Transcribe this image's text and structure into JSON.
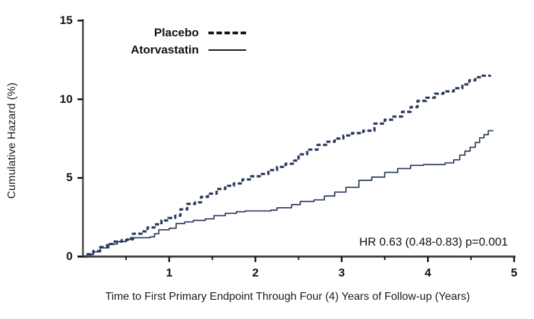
{
  "chart_data": {
    "type": "line",
    "title": "",
    "xlabel": "Time to First Primary Endpoint Through Four (4) Years of Follow-up (Years)",
    "ylabel": "Cumulative Hazard (%)",
    "xlim": [
      0,
      5
    ],
    "ylim": [
      0,
      15
    ],
    "x_ticks": [
      1,
      2,
      3,
      4,
      5
    ],
    "x_minor_ticks": [
      0.5,
      1.5,
      2.5,
      3.5,
      4.5
    ],
    "y_ticks": [
      0,
      5,
      10,
      15
    ],
    "grid": false,
    "legend_position": "top-inside",
    "annotation": "HR 0.63 (0.48-0.83)  p=0.001",
    "curve_color": "#2b3a5e",
    "axis_color": "#3f3f3f",
    "legend_swatch_color": "#111111",
    "series": [
      {
        "name": "Placebo",
        "style": "dashed",
        "points": [
          [
            0,
            0
          ],
          [
            0.05,
            0.15
          ],
          [
            0.12,
            0.35
          ],
          [
            0.2,
            0.6
          ],
          [
            0.28,
            0.8
          ],
          [
            0.35,
            0.95
          ],
          [
            0.45,
            1.05
          ],
          [
            0.52,
            1.1
          ],
          [
            0.58,
            1.45
          ],
          [
            0.68,
            1.6
          ],
          [
            0.75,
            1.85
          ],
          [
            0.83,
            2.05
          ],
          [
            0.91,
            2.3
          ],
          [
            0.99,
            2.45
          ],
          [
            1.07,
            2.6
          ],
          [
            1.13,
            3.0
          ],
          [
            1.21,
            3.35
          ],
          [
            1.3,
            3.45
          ],
          [
            1.37,
            3.8
          ],
          [
            1.45,
            4.0
          ],
          [
            1.55,
            4.3
          ],
          [
            1.65,
            4.5
          ],
          [
            1.75,
            4.65
          ],
          [
            1.85,
            4.9
          ],
          [
            1.95,
            5.1
          ],
          [
            2.05,
            5.25
          ],
          [
            2.15,
            5.5
          ],
          [
            2.25,
            5.7
          ],
          [
            2.35,
            5.9
          ],
          [
            2.45,
            6.1
          ],
          [
            2.5,
            6.5
          ],
          [
            2.6,
            6.8
          ],
          [
            2.72,
            7.1
          ],
          [
            2.82,
            7.3
          ],
          [
            2.92,
            7.5
          ],
          [
            3.02,
            7.7
          ],
          [
            3.12,
            7.85
          ],
          [
            3.25,
            8.0
          ],
          [
            3.38,
            8.45
          ],
          [
            3.5,
            8.7
          ],
          [
            3.6,
            8.9
          ],
          [
            3.7,
            9.2
          ],
          [
            3.8,
            9.5
          ],
          [
            3.88,
            9.9
          ],
          [
            3.98,
            10.1
          ],
          [
            4.08,
            10.35
          ],
          [
            4.18,
            10.5
          ],
          [
            4.3,
            10.7
          ],
          [
            4.4,
            10.95
          ],
          [
            4.48,
            11.2
          ],
          [
            4.55,
            11.4
          ],
          [
            4.62,
            11.5
          ],
          [
            4.72,
            11.55
          ]
        ]
      },
      {
        "name": "Atorvastatin",
        "style": "solid",
        "points": [
          [
            0,
            0
          ],
          [
            0.05,
            0.12
          ],
          [
            0.12,
            0.3
          ],
          [
            0.2,
            0.55
          ],
          [
            0.3,
            0.8
          ],
          [
            0.4,
            0.95
          ],
          [
            0.5,
            1.1
          ],
          [
            0.55,
            1.2
          ],
          [
            0.78,
            1.25
          ],
          [
            0.83,
            1.45
          ],
          [
            0.88,
            1.7
          ],
          [
            1.0,
            1.8
          ],
          [
            1.08,
            2.1
          ],
          [
            1.18,
            2.2
          ],
          [
            1.28,
            2.3
          ],
          [
            1.42,
            2.4
          ],
          [
            1.52,
            2.6
          ],
          [
            1.65,
            2.75
          ],
          [
            1.78,
            2.85
          ],
          [
            1.88,
            2.9
          ],
          [
            2.18,
            2.95
          ],
          [
            2.25,
            3.1
          ],
          [
            2.42,
            3.3
          ],
          [
            2.52,
            3.5
          ],
          [
            2.68,
            3.6
          ],
          [
            2.8,
            3.85
          ],
          [
            2.92,
            4.1
          ],
          [
            3.05,
            4.4
          ],
          [
            3.2,
            4.85
          ],
          [
            3.35,
            5.05
          ],
          [
            3.5,
            5.35
          ],
          [
            3.65,
            5.6
          ],
          [
            3.8,
            5.8
          ],
          [
            3.95,
            5.85
          ],
          [
            4.2,
            5.95
          ],
          [
            4.3,
            6.15
          ],
          [
            4.37,
            6.45
          ],
          [
            4.43,
            6.7
          ],
          [
            4.49,
            6.95
          ],
          [
            4.55,
            7.25
          ],
          [
            4.6,
            7.55
          ],
          [
            4.65,
            7.75
          ],
          [
            4.7,
            8.0
          ],
          [
            4.76,
            8.0
          ]
        ]
      }
    ]
  }
}
